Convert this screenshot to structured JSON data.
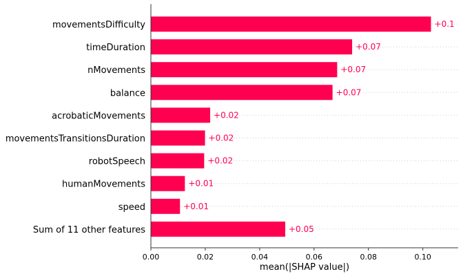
{
  "chart_data": {
    "type": "bar",
    "orientation": "horizontal",
    "categories": [
      "movementsDifficulty",
      "timeDuration",
      "nMovements",
      "balance",
      "acrobaticMovements",
      "movementsTransitionsDuration",
      "robotSpeech",
      "humanMovements",
      "speed",
      "Sum of 11 other features"
    ],
    "values": [
      0.103,
      0.074,
      0.0685,
      0.0668,
      0.0218,
      0.0199,
      0.0196,
      0.0125,
      0.0107,
      0.0494
    ],
    "value_labels": [
      "+0.1",
      "+0.07",
      "+0.07",
      "+0.07",
      "+0.02",
      "+0.02",
      "+0.02",
      "+0.01",
      "+0.01",
      "+0.05"
    ],
    "xlabel": "mean(|SHAP value|)",
    "ylabel": "",
    "xlim": [
      0,
      0.113
    ],
    "xticks": [
      0.0,
      0.02,
      0.04,
      0.06,
      0.08,
      0.1
    ],
    "xtick_labels": [
      "0.00",
      "0.02",
      "0.04",
      "0.06",
      "0.08",
      "0.10"
    ],
    "grid": "horizontal dotted",
    "bar_color": "#ff0051",
    "label_color": "#ff0051"
  }
}
